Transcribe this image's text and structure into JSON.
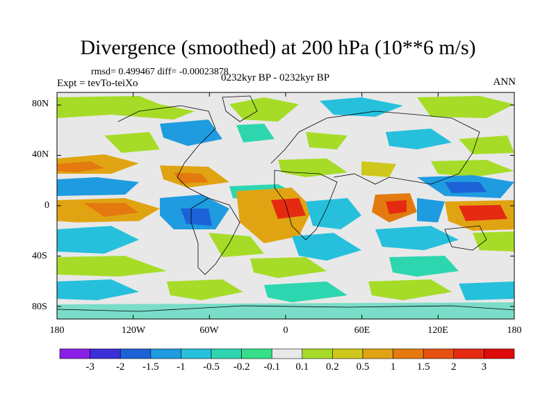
{
  "title": "Divergence (smoothed) at 200 hPa (10**6 m/s)",
  "rmsd_line": "rmsd= 0.499467 diff= -0.00023878",
  "expt_line": "Expt = tevTo-teiXo",
  "period_line": "0232kyr BP - 0232kyr BP",
  "season": "ANN",
  "lat_labels": [
    "80N",
    "40N",
    "0",
    "40S",
    "80S"
  ],
  "lon_labels": [
    "180",
    "120W",
    "60W",
    "0",
    "60E",
    "120E",
    "180"
  ],
  "colorbar": {
    "labels": [
      "-3",
      "-2",
      "-1.5",
      "-1",
      "-0.5",
      "-0.2",
      "-0.1",
      "0.1",
      "0.2",
      "0.5",
      "1",
      "1.5",
      "2",
      "3"
    ],
    "colors": [
      "#8a1fe6",
      "#3b2fd8",
      "#1c62d6",
      "#1f9be0",
      "#26c0dc",
      "#2ed6b0",
      "#36e08a",
      "#e8e8e8",
      "#a6dc28",
      "#cfc81c",
      "#e0a412",
      "#e47a0f",
      "#e6520f",
      "#e52a12",
      "#e00a0a"
    ]
  }
}
